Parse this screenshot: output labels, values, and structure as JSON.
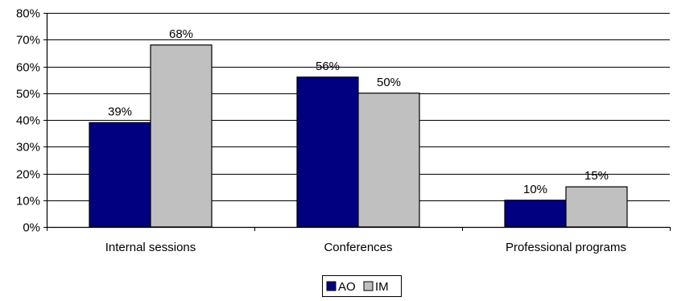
{
  "chart_data": {
    "type": "bar",
    "title": "",
    "xlabel": "",
    "ylabel": "",
    "categories": [
      "Internal sessions",
      "Conferences",
      "Professional programs"
    ],
    "series": [
      {
        "name": "AO",
        "values": [
          39,
          56,
          10
        ],
        "labels": [
          "39%",
          "56%",
          "10%"
        ],
        "color": "#000080"
      },
      {
        "name": "IM",
        "values": [
          68,
          50,
          15
        ],
        "labels": [
          "68%",
          "50%",
          "15%"
        ],
        "color": "#c0c0c0"
      }
    ],
    "ylim": [
      0,
      80
    ],
    "yticks": [
      0,
      10,
      20,
      30,
      40,
      50,
      60,
      70,
      80
    ],
    "ytick_labels": [
      "0%",
      "10%",
      "20%",
      "30%",
      "40%",
      "50%",
      "60%",
      "70%",
      "80%"
    ],
    "grid": true,
    "legend_position": "bottom-center"
  }
}
